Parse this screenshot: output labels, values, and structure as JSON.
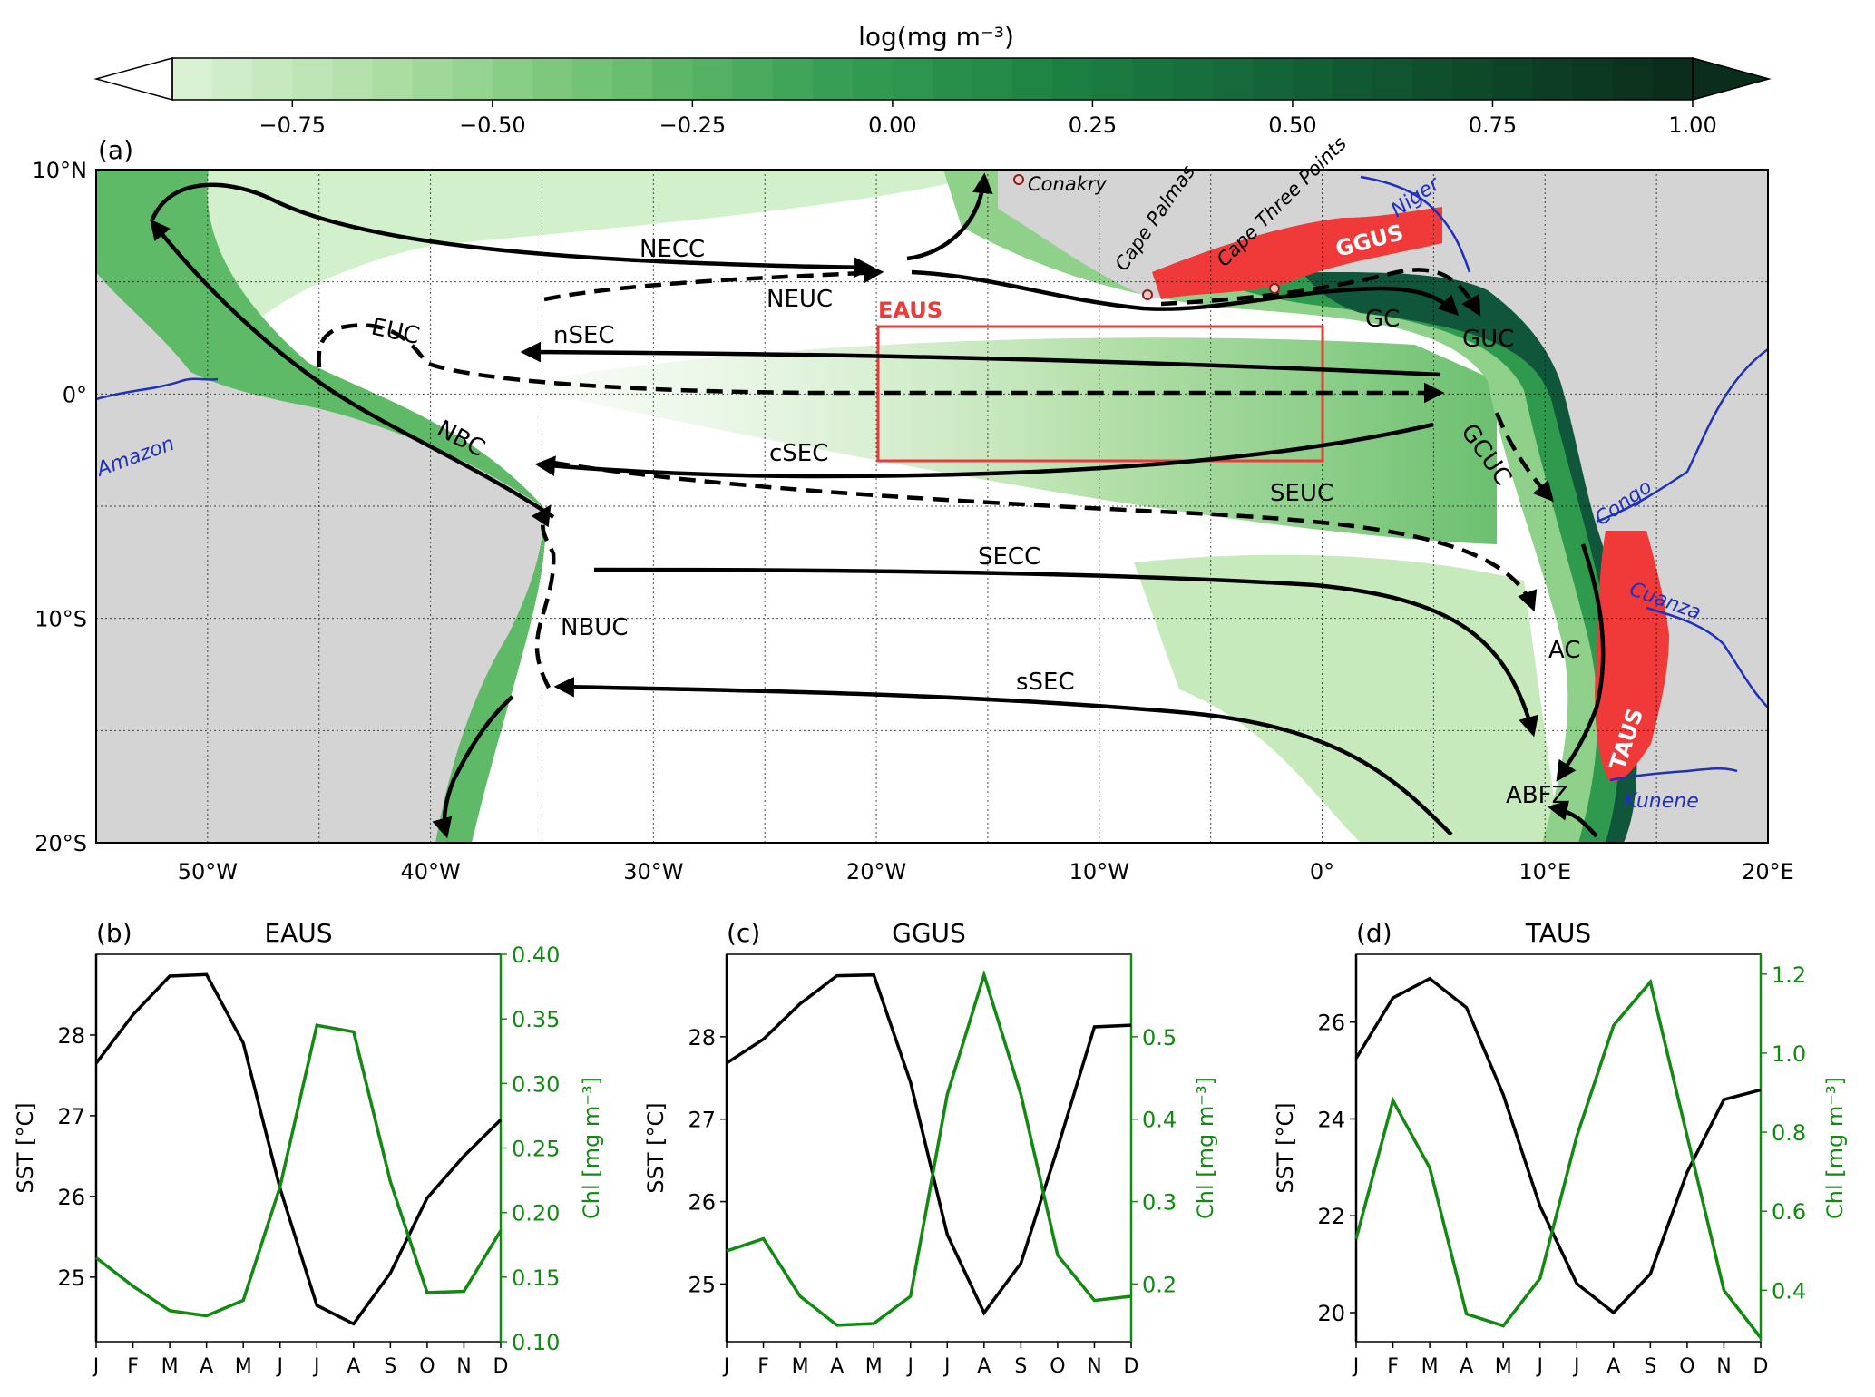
{
  "colorbar": {
    "label": "log(mg m⁻³)",
    "range": [
      -0.9,
      1.0
    ],
    "ticks": [
      "−0.75",
      "−0.50",
      "−0.25",
      "0.00",
      "0.25",
      "0.50",
      "0.75",
      "1.00"
    ],
    "tick_values": [
      -0.75,
      -0.5,
      -0.25,
      0.0,
      0.25,
      0.5,
      0.75,
      1.0
    ],
    "colors": [
      "#ffffff",
      "#d9f1d3",
      "#a8dca0",
      "#6cc070",
      "#37a055",
      "#1d8444",
      "#14673a",
      "#0e4b2b",
      "#0b2e1c"
    ]
  },
  "map": {
    "panel_label": "(a)",
    "lon_range": [
      -55,
      20
    ],
    "lat_range": [
      -20,
      10
    ],
    "lon_ticks": [
      "50°W",
      "40°W",
      "30°W",
      "20°W",
      "10°W",
      "0°",
      "10°E",
      "20°E"
    ],
    "lon_tick_values": [
      -50,
      -40,
      -30,
      -20,
      -10,
      0,
      10,
      20
    ],
    "lat_ticks": [
      "10°N",
      "0°",
      "10°S",
      "20°S"
    ],
    "lat_tick_values": [
      10,
      0,
      -10,
      -20
    ],
    "region_labels": {
      "eaus": "EAUS",
      "ggus": "GGUS",
      "taus": "TAUS"
    },
    "current_labels": {
      "necc": "NECC",
      "neuc": "NEUC",
      "euc": "EUC",
      "nsec": "nSEC",
      "gc": "GC",
      "guc": "GUC",
      "nbc": "NBC",
      "csec": "cSEC",
      "gcuc": "GCUC",
      "seuc": "SEUC",
      "secc": "SECC",
      "nbuc": "NBUC",
      "ac": "AC",
      "ssec": "sSEC",
      "abfz": "ABFZ"
    },
    "place_labels": {
      "conakry": "Conakry",
      "cape_palmas": "Cape Palmas",
      "cape_three_points": "Cape Three Points",
      "niger": "Niger",
      "amazon": "Amazon",
      "congo": "Congo",
      "cuanza": "Cuanza",
      "kunene": "Kunene"
    },
    "colors": {
      "land": "#d4d4d4",
      "upwelling": "#f03a3a",
      "river": "#1f2fbf",
      "current": "#000000"
    }
  },
  "chart_data": [
    {
      "type": "line",
      "panel_label": "(b)",
      "title": "EAUS",
      "categories": [
        "J",
        "F",
        "M",
        "A",
        "M",
        "J",
        "J",
        "A",
        "S",
        "O",
        "N",
        "D"
      ],
      "xlabel": "",
      "ylabel": "SST [°C]",
      "ylim": [
        24.2,
        29.0
      ],
      "yticks": [
        25,
        26,
        27,
        28
      ],
      "y2label": "Chl [mg m⁻³]",
      "y2lim": [
        0.1,
        0.4
      ],
      "y2ticks": [
        "0.10",
        "0.15",
        "0.20",
        "0.25",
        "0.30",
        "0.35",
        "0.40"
      ],
      "y2tick_values": [
        0.1,
        0.15,
        0.2,
        0.25,
        0.3,
        0.35,
        0.4
      ],
      "series": [
        {
          "values": [
            27.65,
            28.25,
            28.73,
            28.75,
            27.9,
            26.1,
            24.65,
            24.42,
            25.05,
            25.98,
            26.5,
            26.95
          ]
        },
        {
          "values": [
            0.165,
            0.143,
            0.124,
            0.12,
            0.132,
            0.22,
            0.345,
            0.34,
            0.224,
            0.138,
            0.139,
            0.186
          ]
        }
      ],
      "colors": {
        "sst": "#000000",
        "chl": "#128a12"
      }
    },
    {
      "type": "line",
      "panel_label": "(c)",
      "title": "GGUS",
      "categories": [
        "J",
        "F",
        "M",
        "A",
        "M",
        "J",
        "J",
        "A",
        "S",
        "O",
        "N",
        "D"
      ],
      "xlabel": "",
      "ylabel": "SST [°C]",
      "ylim": [
        24.3,
        29.0
      ],
      "yticks": [
        25,
        26,
        27,
        28
      ],
      "y2label": "Chl [mg m⁻³]",
      "y2lim": [
        0.13,
        0.6
      ],
      "y2ticks": [
        "0.2",
        "0.3",
        "0.4",
        "0.5"
      ],
      "y2tick_values": [
        0.2,
        0.3,
        0.4,
        0.5
      ],
      "series": [
        {
          "values": [
            27.68,
            27.97,
            28.4,
            28.74,
            28.75,
            27.45,
            25.6,
            24.65,
            25.25,
            26.65,
            28.12,
            28.14
          ]
        },
        {
          "values": [
            0.24,
            0.255,
            0.185,
            0.15,
            0.152,
            0.185,
            0.43,
            0.575,
            0.43,
            0.235,
            0.18,
            0.185
          ]
        }
      ],
      "colors": {
        "sst": "#000000",
        "chl": "#128a12"
      }
    },
    {
      "type": "line",
      "panel_label": "(d)",
      "title": "TAUS",
      "categories": [
        "J",
        "F",
        "M",
        "A",
        "M",
        "J",
        "J",
        "A",
        "S",
        "O",
        "N",
        "D"
      ],
      "xlabel": "",
      "ylabel": "SST [°C]",
      "ylim": [
        19.4,
        27.4
      ],
      "yticks": [
        20,
        22,
        24,
        26
      ],
      "y2label": "Chl [mg m⁻³]",
      "y2lim": [
        0.27,
        1.25
      ],
      "y2ticks": [
        "0.4",
        "0.6",
        "0.8",
        "1.0",
        "1.2"
      ],
      "y2tick_values": [
        0.4,
        0.6,
        0.8,
        1.0,
        1.2
      ],
      "series": [
        {
          "values": [
            25.25,
            26.5,
            26.9,
            26.3,
            24.5,
            22.2,
            20.6,
            20.0,
            20.8,
            22.9,
            24.4,
            24.6
          ]
        },
        {
          "values": [
            0.53,
            0.88,
            0.71,
            0.34,
            0.31,
            0.43,
            0.79,
            1.07,
            1.18,
            0.79,
            0.4,
            0.28
          ]
        }
      ],
      "colors": {
        "sst": "#000000",
        "chl": "#128a12"
      }
    }
  ]
}
